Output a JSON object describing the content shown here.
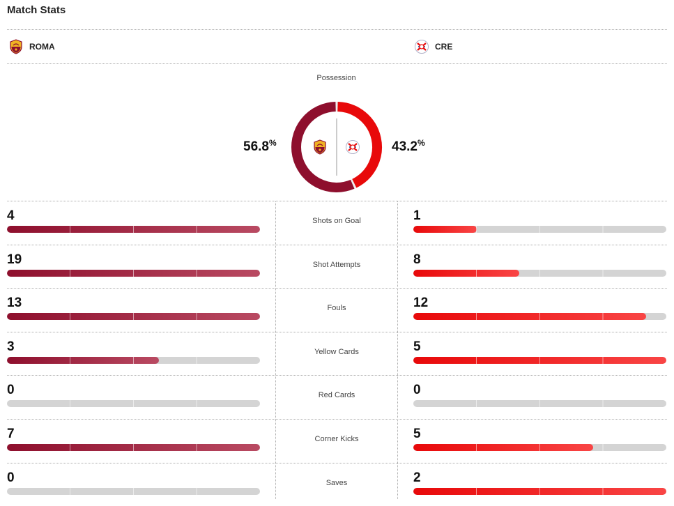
{
  "header": {
    "title": "Match Stats"
  },
  "teams": {
    "home": {
      "abbr": "ROMA",
      "crest": "roma-crest-icon",
      "color": "#8e0f2d"
    },
    "away": {
      "abbr": "CRE",
      "crest": "cremonese-crest-icon",
      "color": "#e8090a"
    }
  },
  "possession": {
    "label": "Possession",
    "home_value": "56.8",
    "away_value": "43.2",
    "unit": "%",
    "home_fraction": 0.568,
    "away_fraction": 0.432
  },
  "stats": [
    {
      "label": "Shots on Goal",
      "home": "4",
      "away": "1",
      "home_fill": 1.0,
      "away_fill": 0.25
    },
    {
      "label": "Shot Attempts",
      "home": "19",
      "away": "8",
      "home_fill": 1.0,
      "away_fill": 0.42
    },
    {
      "label": "Fouls",
      "home": "13",
      "away": "12",
      "home_fill": 1.0,
      "away_fill": 0.92
    },
    {
      "label": "Yellow Cards",
      "home": "3",
      "away": "5",
      "home_fill": 0.6,
      "away_fill": 1.0
    },
    {
      "label": "Red Cards",
      "home": "0",
      "away": "0",
      "home_fill": 0,
      "away_fill": 0
    },
    {
      "label": "Corner Kicks",
      "home": "7",
      "away": "5",
      "home_fill": 1.0,
      "away_fill": 0.71
    },
    {
      "label": "Saves",
      "home": "0",
      "away": "2",
      "home_fill": 0,
      "away_fill": 1.0
    }
  ]
}
